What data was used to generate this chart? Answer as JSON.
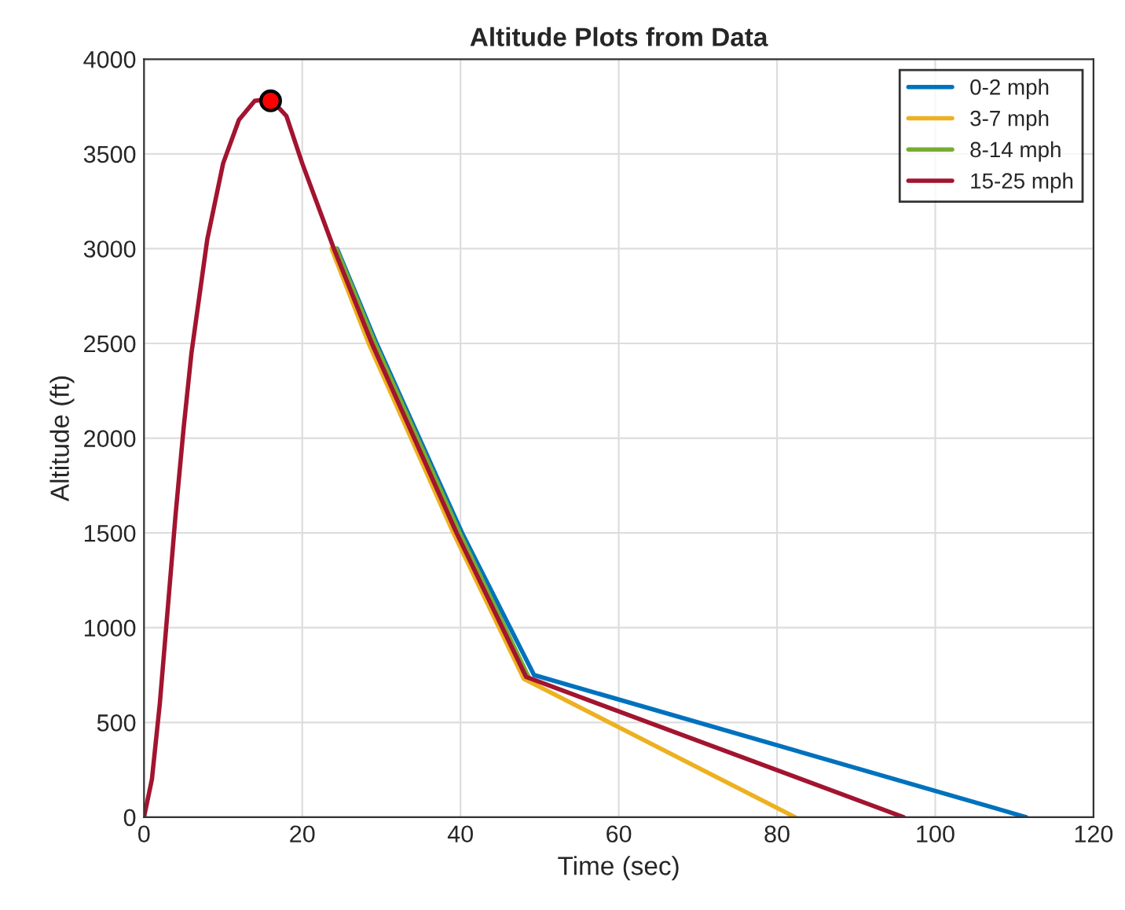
{
  "chart_data": {
    "type": "line",
    "title": "Altitude Plots from Data",
    "xlabel": "Time (sec)",
    "ylabel": "Altitude (ft)",
    "xlim": [
      0,
      120
    ],
    "ylim": [
      0,
      4000
    ],
    "xticks": [
      0,
      20,
      40,
      60,
      80,
      100,
      120
    ],
    "yticks": [
      0,
      500,
      1000,
      1500,
      2000,
      2500,
      3000,
      3500,
      4000
    ],
    "grid": true,
    "legend": "top right",
    "line_style": "solid",
    "series": [
      {
        "name": "0-2 mph",
        "color": "#0072bd",
        "x": [
          24.4,
          29.4,
          40.2,
          49.3,
          111.5
        ],
        "values": [
          3000,
          2500,
          1500,
          750,
          0
        ]
      },
      {
        "name": "3-7 mph",
        "color": "#edb120",
        "x": [
          23.7,
          28.4,
          39.1,
          48.0,
          82.3
        ],
        "values": [
          3000,
          2500,
          1500,
          730,
          0
        ]
      },
      {
        "name": "8-14 mph",
        "color": "#77ac30",
        "x": [
          24.3,
          29.2,
          39.9,
          48.6
        ],
        "values": [
          3000,
          2500,
          1500,
          740
        ]
      },
      {
        "name": "15-25 mph",
        "color": "#a2142f",
        "x": [
          0,
          1,
          2,
          3,
          4,
          5,
          6,
          8,
          10,
          12,
          14,
          16,
          18,
          20,
          24,
          28.8,
          39.5,
          48.3,
          96
        ],
        "values": [
          0,
          200,
          600,
          1100,
          1600,
          2050,
          2450,
          3050,
          3450,
          3680,
          3780,
          3790,
          3700,
          3450,
          3000,
          2500,
          1500,
          740,
          0
        ]
      },
      {
        "type": "scatter",
        "color": "#ff0000",
        "marker": "circle",
        "x": [
          16
        ],
        "values": [
          3780
        ]
      }
    ]
  }
}
